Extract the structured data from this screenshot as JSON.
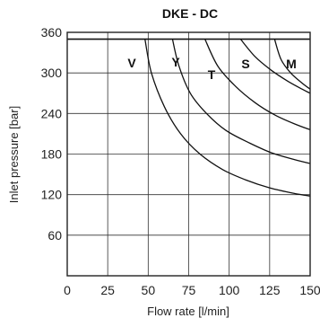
{
  "chart_data": {
    "type": "line",
    "title": "DKE - DC",
    "xlabel": "Flow rate [l/min]",
    "ylabel": "Inlet pressure [bar]",
    "xlim": [
      0,
      150
    ],
    "ylim": [
      0,
      360
    ],
    "xticks": [
      "0",
      "25",
      "50",
      "75",
      "100",
      "125",
      "150"
    ],
    "yticks": [
      "60",
      "120",
      "180",
      "240",
      "300",
      "360"
    ],
    "grid": true,
    "max_pressure": 350,
    "series": [
      {
        "name": "V",
        "points": [
          [
            48,
            350
          ],
          [
            52,
            300
          ],
          [
            60,
            250
          ],
          [
            70,
            210
          ],
          [
            82,
            180
          ],
          [
            96,
            157
          ],
          [
            110,
            142
          ],
          [
            125,
            130
          ],
          [
            140,
            122
          ],
          [
            150,
            118
          ]
        ]
      },
      {
        "name": "Y",
        "points": [
          [
            65,
            350
          ],
          [
            69,
            310
          ],
          [
            76,
            270
          ],
          [
            86,
            240
          ],
          [
            98,
            215
          ],
          [
            112,
            197
          ],
          [
            126,
            182
          ],
          [
            140,
            172
          ],
          [
            150,
            166
          ]
        ]
      },
      {
        "name": "T",
        "points": [
          [
            85,
            350
          ],
          [
            93,
            310
          ],
          [
            104,
            280
          ],
          [
            116,
            256
          ],
          [
            128,
            238
          ],
          [
            140,
            225
          ],
          [
            150,
            216
          ]
        ]
      },
      {
        "name": "S",
        "points": [
          [
            107,
            350
          ],
          [
            116,
            324
          ],
          [
            126,
            304
          ],
          [
            136,
            288
          ],
          [
            145,
            276
          ],
          [
            150,
            270
          ]
        ]
      },
      {
        "name": "M",
        "points": [
          [
            128,
            350
          ],
          [
            132,
            320
          ],
          [
            138,
            300
          ],
          [
            145,
            285
          ],
          [
            150,
            276
          ]
        ]
      }
    ],
    "curve_labels": [
      "V",
      "Y",
      "T",
      "S",
      "M"
    ]
  }
}
